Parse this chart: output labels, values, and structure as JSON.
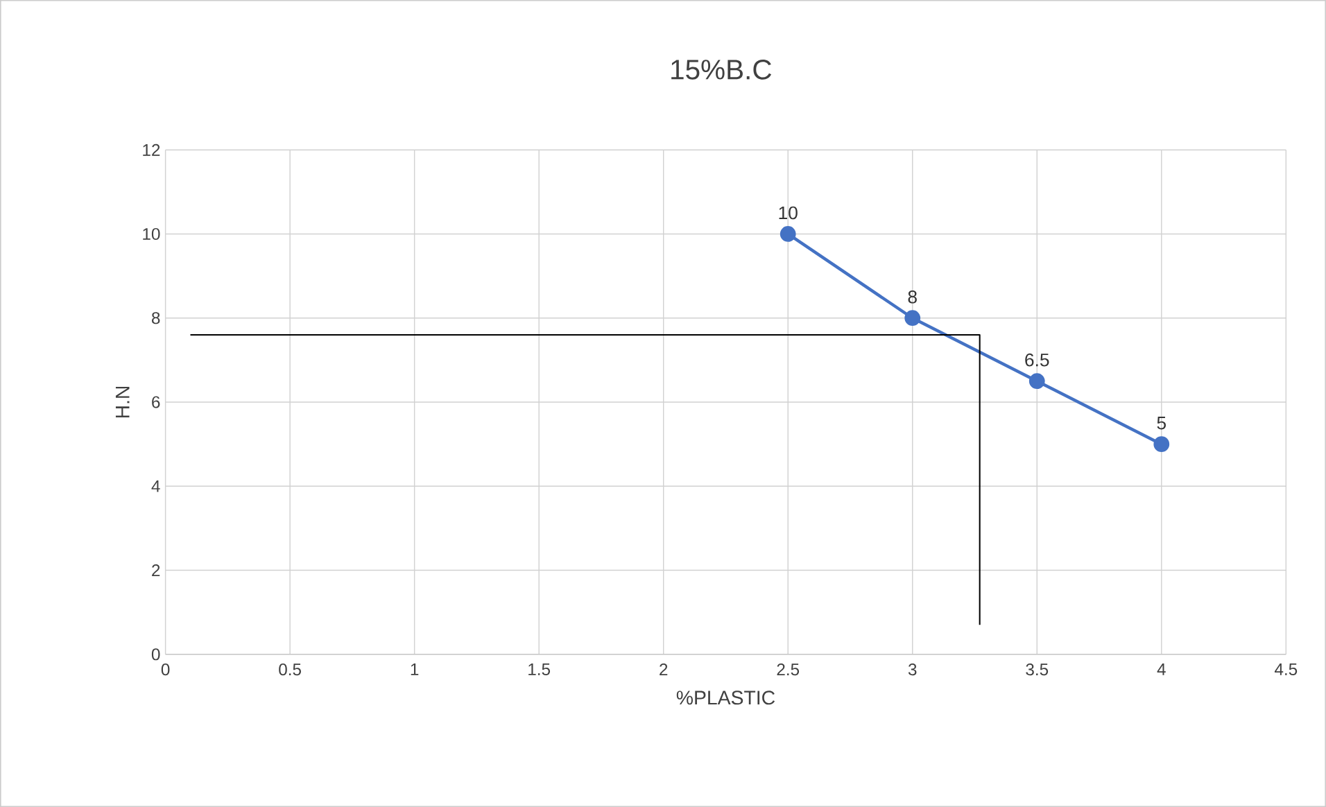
{
  "chart_data": {
    "type": "line",
    "title": "15%B.C",
    "xlabel": "%PLASTIC",
    "ylabel": "H.N",
    "xlim": [
      0,
      4.5
    ],
    "ylim": [
      0,
      12
    ],
    "xticks": [
      0,
      0.5,
      1,
      1.5,
      2,
      2.5,
      3,
      3.5,
      4,
      4.5
    ],
    "yticks": [
      0,
      2,
      4,
      6,
      8,
      10,
      12
    ],
    "grid": true,
    "series": [
      {
        "x": [
          2.5,
          3,
          3.5,
          4
        ],
        "values": [
          10,
          8,
          6.5,
          5
        ],
        "color": "#4472c4",
        "marker": "circle",
        "data_labels": true
      },
      {
        "x": [
          0.1,
          3.27,
          3.27
        ],
        "values": [
          7.6,
          7.6,
          0.7
        ],
        "color": "#000000",
        "marker": "none"
      }
    ]
  }
}
